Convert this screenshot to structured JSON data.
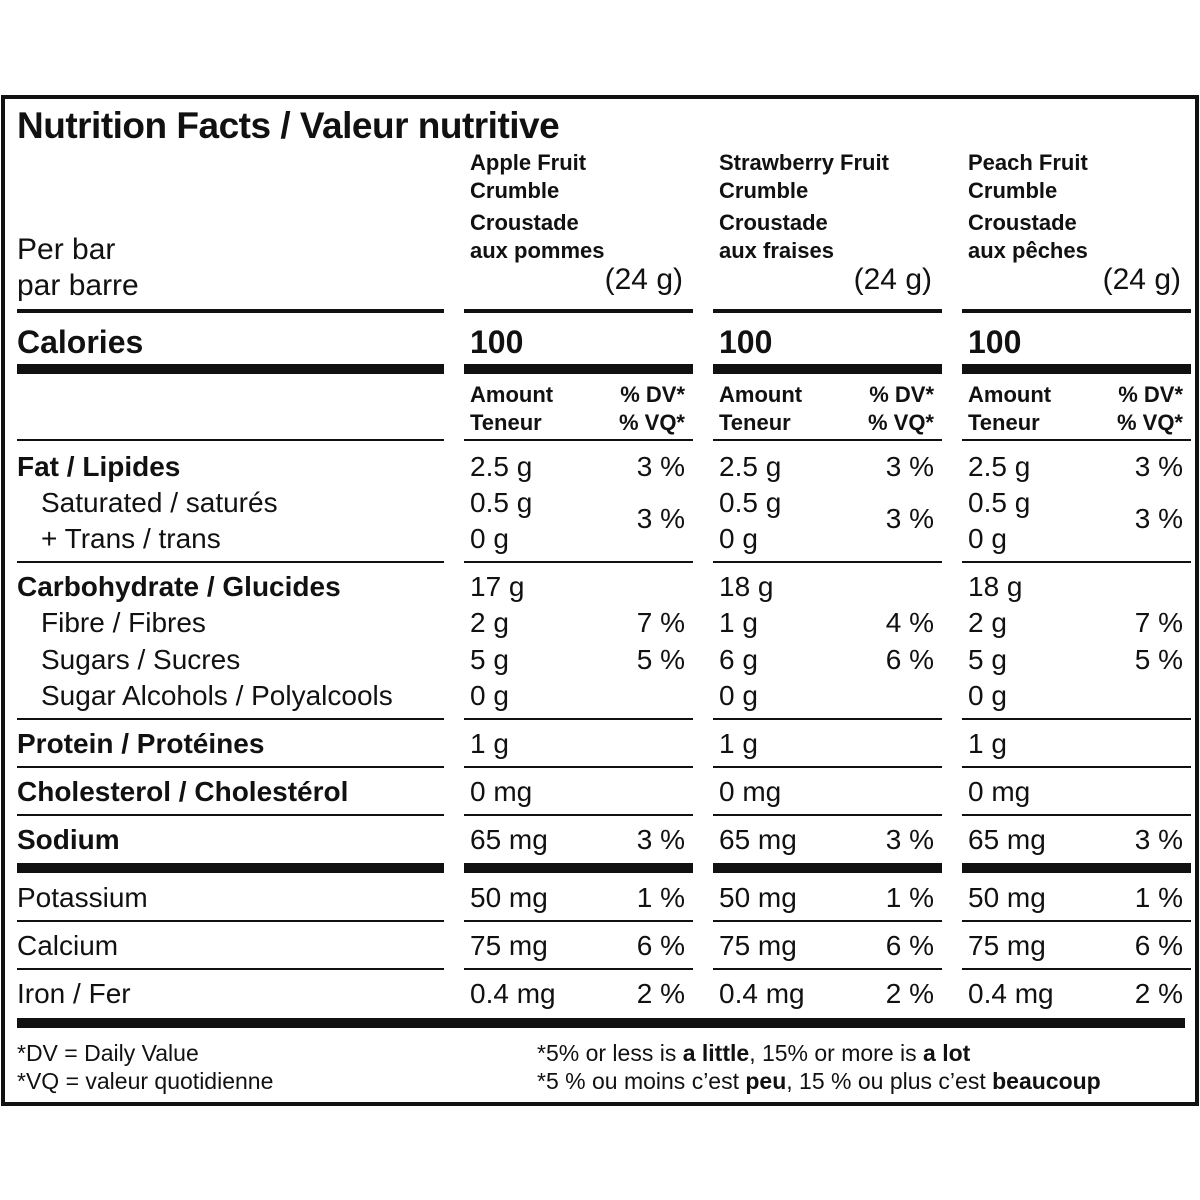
{
  "title": "Nutrition Facts / Valeur nutritive",
  "serving": {
    "per_en": "Per bar",
    "per_fr": "par barre"
  },
  "products": [
    {
      "name_en_1": "Apple Fruit",
      "name_en_2": "Crumble",
      "name_fr_1": "Croustade",
      "name_fr_2": "aux pommes",
      "size": "(24 g)",
      "calories": "100",
      "fat": "2.5 g",
      "fat_dv": "3 %",
      "sat": "0.5 g",
      "trans": "0 g",
      "sat_trans_dv": "3 %",
      "carb": "17 g",
      "fibre": "2 g",
      "fibre_dv": "7 %",
      "sugars": "5 g",
      "sugars_dv": "5 %",
      "sugar_alcohols": "0 g",
      "protein": "1 g",
      "cholesterol": "0 mg",
      "sodium": "65 mg",
      "sodium_dv": "3 %",
      "potassium": "50 mg",
      "potassium_dv": "1 %",
      "calcium": "75 mg",
      "calcium_dv": "6 %",
      "iron": "0.4 mg",
      "iron_dv": "2 %"
    },
    {
      "name_en_1": "Strawberry Fruit",
      "name_en_2": "Crumble",
      "name_fr_1": "Croustade",
      "name_fr_2": "aux fraises",
      "size": "(24 g)",
      "calories": "100",
      "fat": "2.5 g",
      "fat_dv": "3 %",
      "sat": "0.5 g",
      "trans": "0 g",
      "sat_trans_dv": "3 %",
      "carb": "18 g",
      "fibre": "1 g",
      "fibre_dv": "4 %",
      "sugars": "6 g",
      "sugars_dv": "6 %",
      "sugar_alcohols": "0 g",
      "protein": "1 g",
      "cholesterol": "0 mg",
      "sodium": "65 mg",
      "sodium_dv": "3 %",
      "potassium": "50 mg",
      "potassium_dv": "1 %",
      "calcium": "75 mg",
      "calcium_dv": "6 %",
      "iron": "0.4 mg",
      "iron_dv": "2 %"
    },
    {
      "name_en_1": "Peach Fruit",
      "name_en_2": "Crumble",
      "name_fr_1": "Croustade",
      "name_fr_2": "aux pêches",
      "size": "(24 g)",
      "calories": "100",
      "fat": "2.5 g",
      "fat_dv": "3 %",
      "sat": "0.5 g",
      "trans": "0 g",
      "sat_trans_dv": "3 %",
      "carb": "18 g",
      "fibre": "2 g",
      "fibre_dv": "7 %",
      "sugars": "5 g",
      "sugars_dv": "5 %",
      "sugar_alcohols": "0 g",
      "protein": "1 g",
      "cholesterol": "0 mg",
      "sodium": "65 mg",
      "sodium_dv": "3 %",
      "potassium": "50 mg",
      "potassium_dv": "1 %",
      "calcium": "75 mg",
      "calcium_dv": "6 %",
      "iron": "0.4 mg",
      "iron_dv": "2 %"
    }
  ],
  "column_headers": {
    "amount": "Amount",
    "teneur": "Teneur",
    "dv": "% DV*",
    "vq": "% VQ*"
  },
  "nutrients": {
    "calories": "Calories",
    "fat": "Fat / Lipides",
    "sat": "Saturated / saturés",
    "trans": "+ Trans / trans",
    "carb": "Carbohydrate / Glucides",
    "fibre": "Fibre / Fibres",
    "sugars": "Sugars / Sucres",
    "sugar_alcohols": "Sugar Alcohols / Polyalcools",
    "protein": "Protein / Protéines",
    "cholesterol": "Cholesterol / Cholestérol",
    "sodium": "Sodium",
    "potassium": "Potassium",
    "calcium": "Calcium",
    "iron": "Iron / Fer"
  },
  "footer": {
    "dv_def": "*DV = Daily Value",
    "vq_def": "*VQ = valeur quotidienne",
    "en_pre": "*5% or less is ",
    "en_b1": "a little",
    "en_mid": ", 15% or more is ",
    "en_b2": "a lot",
    "fr_pre": "*5 % ou moins c’est ",
    "fr_b1": "peu",
    "fr_mid": ", 15 % ou plus c’est ",
    "fr_b2": "beaucoup"
  }
}
